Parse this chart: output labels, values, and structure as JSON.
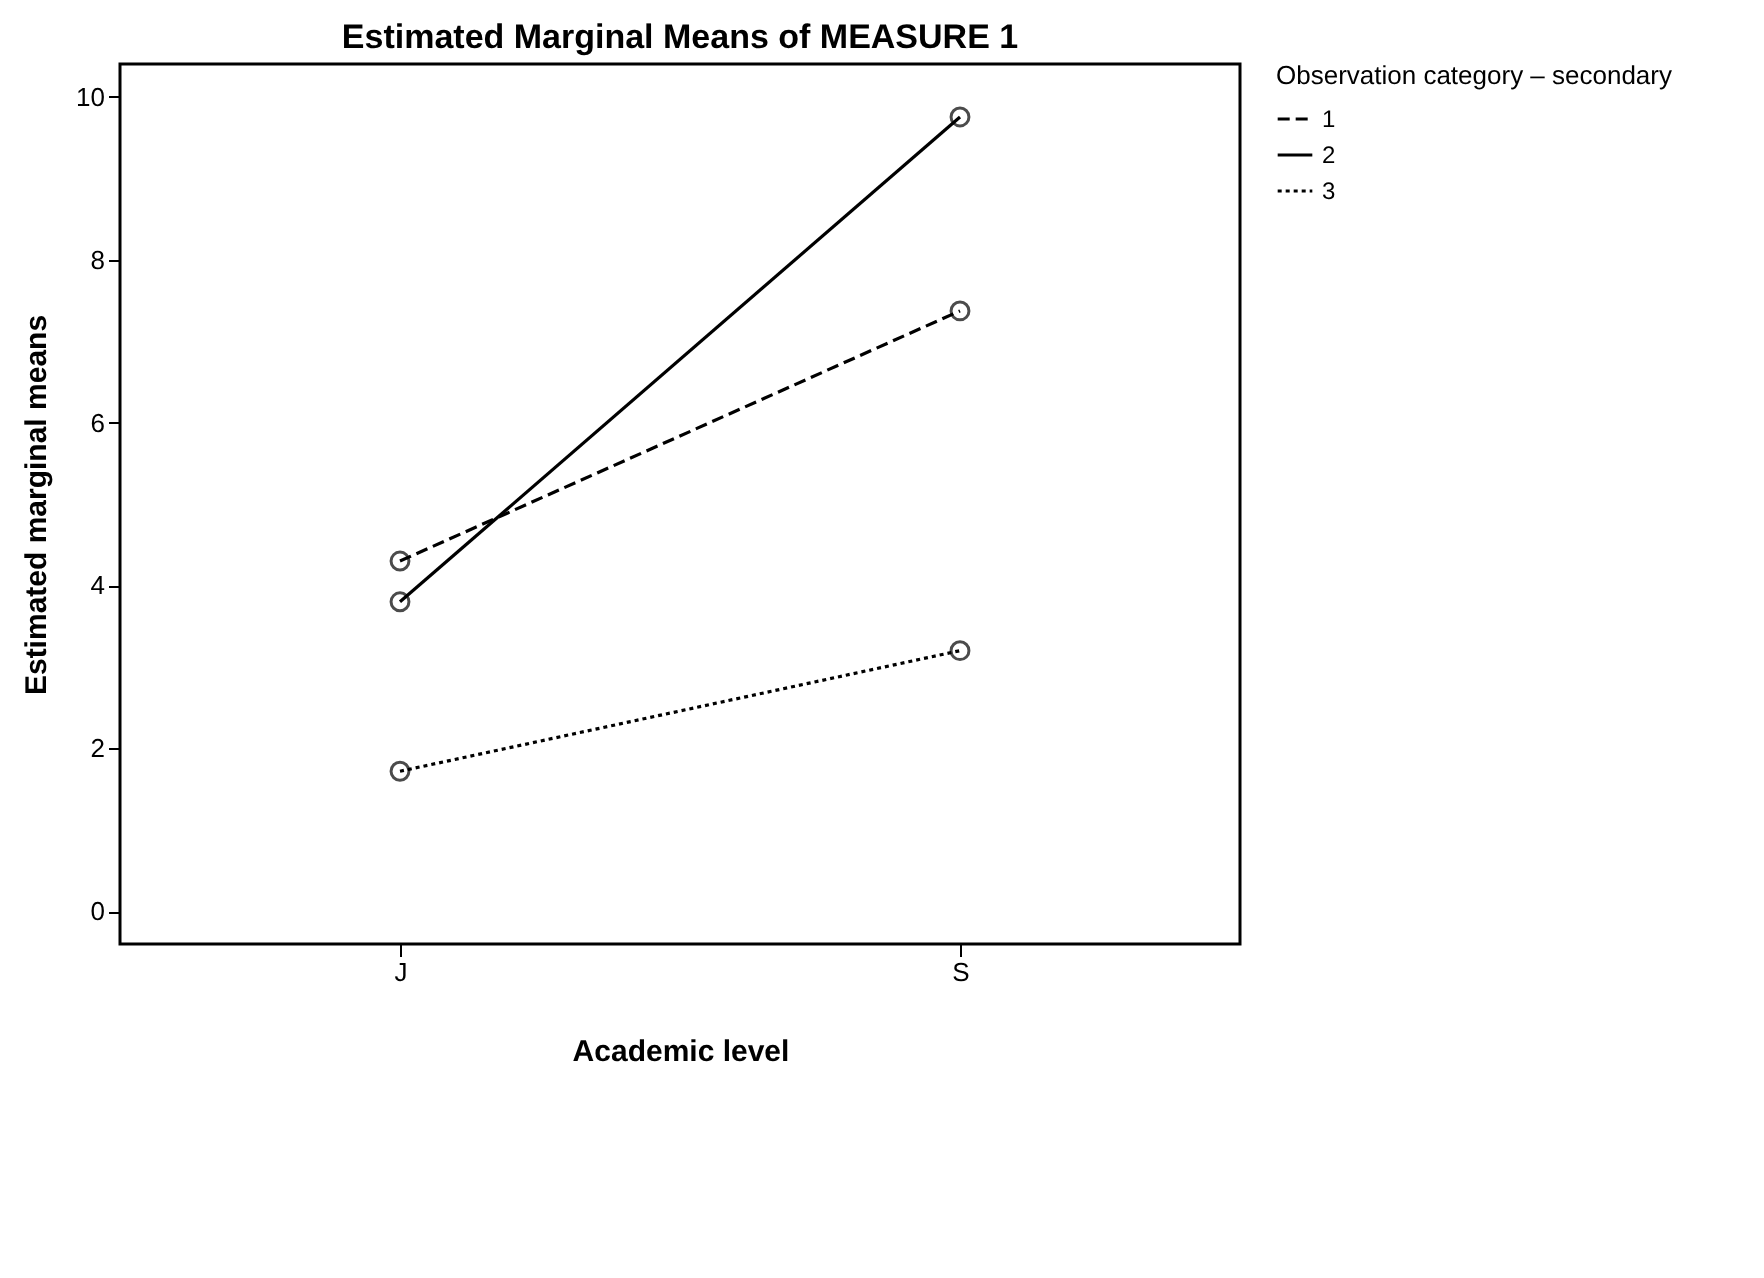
{
  "chart_data": {
    "type": "line",
    "title": "Estimated Marginal Means of MEASURE 1",
    "xlabel": "Academic level",
    "ylabel": "Estimated marginal means",
    "legend_title": "Observation category – secondary",
    "categories": [
      "J",
      "S"
    ],
    "series": [
      {
        "name": "1",
        "color": "#000000",
        "line_style": "dashed",
        "values": [
          4.3,
          7.37
        ]
      },
      {
        "name": "2",
        "color": "#000000",
        "line_style": "solid",
        "values": [
          3.8,
          9.75
        ]
      },
      {
        "name": "3",
        "color": "#000000",
        "line_style": "dotted",
        "values": [
          1.72,
          3.2
        ]
      }
    ],
    "ylim": [
      -0.4,
      10.4
    ],
    "yticks": [
      0,
      2,
      4,
      6,
      8,
      10
    ],
    "grid": false,
    "legend": "top right",
    "marker": "circle"
  }
}
